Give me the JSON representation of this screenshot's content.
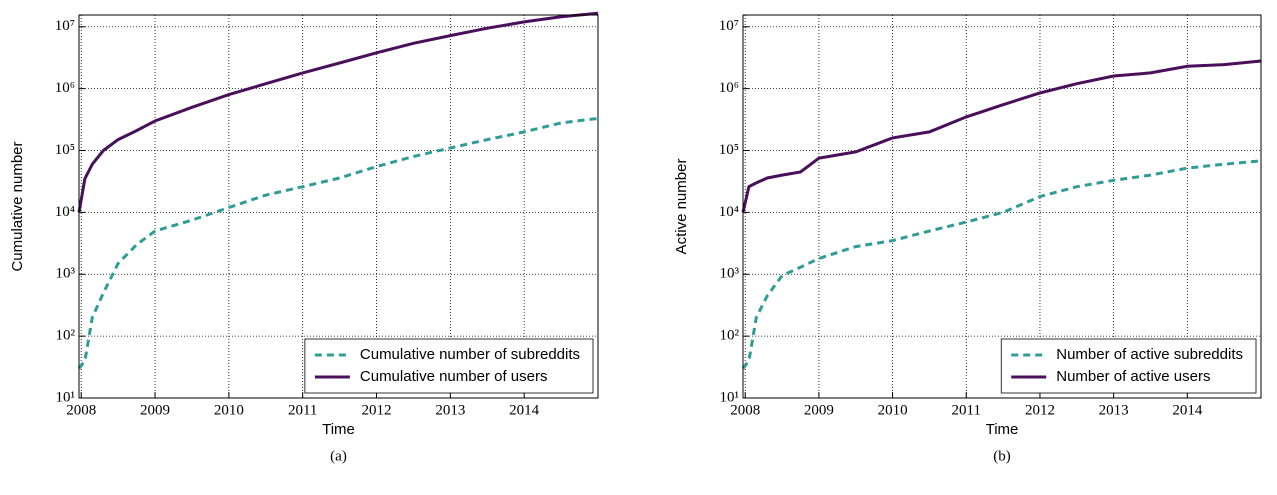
{
  "chart_data": [
    {
      "type": "line",
      "caption": "(a)",
      "x_label": "Time",
      "y_label": "Cumulative number",
      "log_y": true,
      "grid": true,
      "legend": "lower right",
      "x": [
        2007.97,
        2008.05,
        2008.15,
        2008.3,
        2008.5,
        2008.75,
        2009.0,
        2009.5,
        2010.0,
        2010.5,
        2011.0,
        2011.5,
        2012.0,
        2012.5,
        2013.0,
        2013.5,
        2014.0,
        2014.5,
        2015.0
      ],
      "xlim": [
        2007.97,
        2015.0
      ],
      "xticks": [
        2008,
        2009,
        2010,
        2011,
        2012,
        2013,
        2014
      ],
      "ylim": [
        10,
        15500000
      ],
      "yticks": [
        {
          "value": 10,
          "label": "10¹"
        },
        {
          "value": 100,
          "label": "10²"
        },
        {
          "value": 1000,
          "label": "10³"
        },
        {
          "value": 10000,
          "label": "10⁴"
        },
        {
          "value": 100000,
          "label": "10⁵"
        },
        {
          "value": 1000000,
          "label": "10⁶"
        },
        {
          "value": 10000000,
          "label": "10⁷"
        }
      ],
      "series": [
        {
          "name": "Cumulative number of subreddits",
          "color": "#2f9c95",
          "dashed": true,
          "values": [
            30,
            40,
            200,
            500,
            1500,
            3000,
            5000,
            7500,
            12000,
            19000,
            26000,
            36000,
            55000,
            80000,
            110000,
            150000,
            200000,
            280000,
            330000
          ]
        },
        {
          "name": "Cumulative number of users",
          "color": "#4a0f5a",
          "dashed": false,
          "values": [
            10000,
            35000,
            60000,
            100000,
            150000,
            210000,
            300000,
            500000,
            800000,
            1200000,
            1800000,
            2600000,
            3800000,
            5400000,
            7200000,
            9500000,
            12000000,
            14500000,
            16500000
          ]
        }
      ]
    },
    {
      "type": "line",
      "caption": "(b)",
      "x_label": "Time",
      "y_label": "Active number",
      "log_y": true,
      "grid": true,
      "legend": "lower right",
      "x": [
        2007.97,
        2008.05,
        2008.15,
        2008.3,
        2008.5,
        2008.75,
        2009.0,
        2009.5,
        2010.0,
        2010.5,
        2011.0,
        2011.5,
        2012.0,
        2012.5,
        2013.0,
        2013.5,
        2014.0,
        2014.5,
        2015.0
      ],
      "xlim": [
        2007.97,
        2015.0
      ],
      "xticks": [
        2008,
        2009,
        2010,
        2011,
        2012,
        2013,
        2014
      ],
      "ylim": [
        10,
        15500000
      ],
      "yticks": [
        {
          "value": 10,
          "label": "10¹"
        },
        {
          "value": 100,
          "label": "10²"
        },
        {
          "value": 1000,
          "label": "10³"
        },
        {
          "value": 10000,
          "label": "10⁴"
        },
        {
          "value": 100000,
          "label": "10⁵"
        },
        {
          "value": 1000000,
          "label": "10⁶"
        },
        {
          "value": 10000000,
          "label": "10⁷"
        }
      ],
      "series": [
        {
          "name": "Number of active subreddits",
          "color": "#2f9c95",
          "dashed": true,
          "values": [
            30,
            40,
            200,
            450,
            950,
            1300,
            1800,
            2800,
            3500,
            5000,
            7000,
            10000,
            18000,
            26000,
            33000,
            40000,
            52000,
            60000,
            68000
          ]
        },
        {
          "name": "Number of active users",
          "color": "#4a0f5a",
          "dashed": false,
          "values": [
            10000,
            26000,
            30000,
            36000,
            40000,
            45000,
            75000,
            95000,
            160000,
            200000,
            350000,
            550000,
            850000,
            1200000,
            1600000,
            1800000,
            2300000,
            2450000,
            2800000
          ]
        }
      ]
    }
  ]
}
